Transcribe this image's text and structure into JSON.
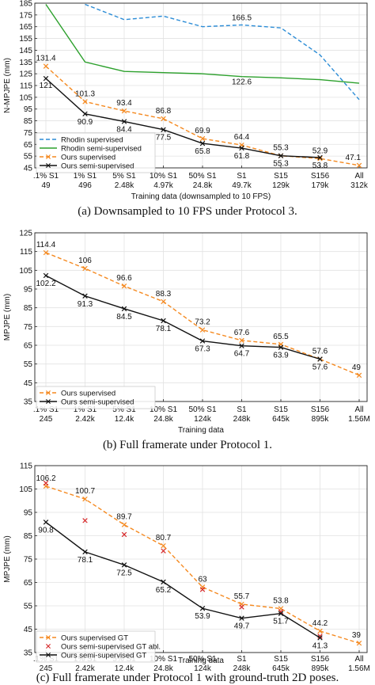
{
  "chart_data": [
    {
      "type": "line",
      "caption": "(a) Downsampled to 10 FPS under Protocol 3.",
      "ylabel": "N-MPJPE (mm)",
      "xlabel": "Training data (downsampled to 10 FPS)",
      "ylim": [
        45,
        185
      ],
      "yticks": [
        45,
        55,
        65,
        75,
        85,
        95,
        105,
        115,
        125,
        135,
        145,
        155,
        165,
        175,
        185
      ],
      "categories": [
        ".1% S1",
        "1% S1",
        "5% S1",
        "10% S1",
        "50% S1",
        "S1",
        "S15",
        "S156",
        "All"
      ],
      "categories_sub": [
        "49",
        "496",
        "2.48k",
        "4.97k",
        "24.8k",
        "49.7k",
        "129k",
        "179k",
        "312k"
      ],
      "grid": true,
      "legend": "bottom-left",
      "series": [
        {
          "name": "Rhodin supervised",
          "color": "#2b8cd6",
          "dash": "5,3",
          "marker": "none",
          "x": [
            1,
            2,
            3,
            4,
            5,
            6,
            7,
            8
          ],
          "values": [
            184,
            171,
            174,
            165,
            166.5,
            164,
            141,
            103
          ],
          "labels": [
            {
              "i": 4,
              "text": "166.5",
              "dy": -6
            }
          ]
        },
        {
          "name": "Rhodin semi-supervised",
          "color": "#2ca02c",
          "dash": "",
          "marker": "none",
          "x": [
            0,
            1,
            2,
            3,
            4,
            5,
            6,
            7,
            8
          ],
          "values": [
            184,
            135,
            127,
            126,
            125,
            122.6,
            121.5,
            120,
            117
          ],
          "labels": [
            {
              "i": 5,
              "text": "122.6",
              "dy": 10
            }
          ]
        },
        {
          "name": "Ours supervised",
          "color": "#f5891f",
          "dash": "5,3",
          "marker": "x",
          "x": [
            0,
            1,
            2,
            3,
            4,
            5,
            6,
            7,
            8
          ],
          "values": [
            131.4,
            101.3,
            93.4,
            86.8,
            69.9,
            64.4,
            55.3,
            52.9,
            47.1
          ],
          "labels": [
            {
              "i": 0,
              "text": "131.4",
              "dy": -7
            },
            {
              "i": 1,
              "text": "101.3",
              "dy": -7
            },
            {
              "i": 2,
              "text": "93.4",
              "dy": -7
            },
            {
              "i": 3,
              "text": "86.8",
              "dy": -7
            },
            {
              "i": 4,
              "text": "69.9",
              "dy": -7
            },
            {
              "i": 5,
              "text": "64.4",
              "dy": -7
            },
            {
              "i": 6,
              "text": "55.3",
              "dy": -7
            },
            {
              "i": 7,
              "text": "52.9",
              "dy": -7
            },
            {
              "i": 8,
              "text": "47.1",
              "dy": -7
            }
          ]
        },
        {
          "name": "Ours semi-supervised",
          "color": "#111111",
          "dash": "",
          "marker": "x",
          "x": [
            0,
            1,
            2,
            3,
            4,
            5,
            6,
            7
          ],
          "values": [
            121,
            90.9,
            84.4,
            77.5,
            65.8,
            61.8,
            55.3,
            53.8
          ],
          "labels": [
            {
              "i": 0,
              "text": "121",
              "dy": 12
            },
            {
              "i": 1,
              "text": "90.9",
              "dy": 13
            },
            {
              "i": 2,
              "text": "84.4",
              "dy": 13
            },
            {
              "i": 3,
              "text": "77.5",
              "dy": 13
            },
            {
              "i": 4,
              "text": "65.8",
              "dy": 13
            },
            {
              "i": 5,
              "text": "61.8",
              "dy": 13
            },
            {
              "i": 6,
              "text": "55.3",
              "dy": 13
            },
            {
              "i": 7,
              "text": "53.8",
              "dy": 13
            }
          ]
        }
      ]
    },
    {
      "type": "line",
      "caption": "(b) Full framerate under Protocol 1.",
      "ylabel": "MPJPE (mm)",
      "xlabel": "Training data",
      "ylim": [
        35,
        125
      ],
      "yticks": [
        35,
        45,
        55,
        65,
        75,
        85,
        95,
        105,
        115,
        125
      ],
      "categories": [
        ".1% S1",
        "1% S1",
        "5% S1",
        "10% S1",
        "50% S1",
        "S1",
        "S15",
        "S156",
        "All"
      ],
      "categories_sub": [
        "245",
        "2.42k",
        "12.4k",
        "24.8k",
        "124k",
        "248k",
        "645k",
        "895k",
        "1.56M"
      ],
      "grid": true,
      "legend": "bottom-left",
      "series": [
        {
          "name": "Ours supervised",
          "color": "#f5891f",
          "dash": "5,3",
          "marker": "x",
          "x": [
            0,
            1,
            2,
            3,
            4,
            5,
            6,
            7,
            8
          ],
          "values": [
            114.4,
            106,
            96.6,
            88.3,
            73.2,
            67.6,
            65.5,
            57.6,
            49
          ],
          "labels": [
            {
              "i": 0,
              "text": "114.4",
              "dy": -7
            },
            {
              "i": 1,
              "text": "106",
              "dy": -7
            },
            {
              "i": 2,
              "text": "96.6",
              "dy": -7
            },
            {
              "i": 3,
              "text": "88.3",
              "dy": -7
            },
            {
              "i": 4,
              "text": "73.2",
              "dy": -7
            },
            {
              "i": 5,
              "text": "67.6",
              "dy": -7
            },
            {
              "i": 6,
              "text": "65.5",
              "dy": -7
            },
            {
              "i": 7,
              "text": "57.6",
              "dy": -7
            },
            {
              "i": 8,
              "text": "49",
              "dy": -7
            }
          ]
        },
        {
          "name": "Ours semi-supervised",
          "color": "#111111",
          "dash": "",
          "marker": "x",
          "x": [
            0,
            1,
            2,
            3,
            4,
            5,
            6,
            7
          ],
          "values": [
            102.2,
            91.3,
            84.5,
            78.1,
            67.3,
            64.7,
            63.9,
            57.6
          ],
          "labels": [
            {
              "i": 0,
              "text": "102.2",
              "dy": 13
            },
            {
              "i": 1,
              "text": "91.3",
              "dy": 13
            },
            {
              "i": 2,
              "text": "84.5",
              "dy": 13
            },
            {
              "i": 3,
              "text": "78.1",
              "dy": 13
            },
            {
              "i": 4,
              "text": "67.3",
              "dy": 13
            },
            {
              "i": 5,
              "text": "64.7",
              "dy": 13
            },
            {
              "i": 6,
              "text": "63.9",
              "dy": 13
            },
            {
              "i": 7,
              "text": "57.6",
              "dy": 13
            }
          ]
        }
      ]
    },
    {
      "type": "line",
      "caption": "(c) Full framerate under Protocol 1 with ground-truth 2D poses.",
      "ylabel": "MPJPE (mm)",
      "xlabel": "Training data",
      "ylim": [
        35,
        115
      ],
      "yticks": [
        35,
        45,
        55,
        65,
        75,
        85,
        95,
        105,
        115
      ],
      "categories": [
        ".1% S1",
        "1% S1",
        "5% S1",
        "10% S1",
        "50% S1",
        "S1",
        "S15",
        "S156",
        "All"
      ],
      "categories_sub": [
        "245",
        "2.42k",
        "12.4k",
        "24.8k",
        "124k",
        "248k",
        "645k",
        "895k",
        "1.56M"
      ],
      "grid": true,
      "legend": "bottom-left",
      "series": [
        {
          "name": "Ours supervised GT",
          "color": "#f5891f",
          "dash": "5,3",
          "marker": "x",
          "x": [
            0,
            1,
            2,
            3,
            4,
            5,
            6,
            7,
            8
          ],
          "values": [
            106.2,
            100.7,
            89.7,
            80.7,
            63,
            55.7,
            53.8,
            44.2,
            39
          ],
          "labels": [
            {
              "i": 0,
              "text": "106.2",
              "dy": -7
            },
            {
              "i": 1,
              "text": "100.7",
              "dy": -7
            },
            {
              "i": 2,
              "text": "89.7",
              "dy": -7
            },
            {
              "i": 3,
              "text": "80.7",
              "dy": -7
            },
            {
              "i": 4,
              "text": "63",
              "dy": -7
            },
            {
              "i": 5,
              "text": "55.7",
              "dy": -7
            },
            {
              "i": 6,
              "text": "53.8",
              "dy": -7
            },
            {
              "i": 7,
              "text": "44.2",
              "dy": -7
            },
            {
              "i": 8,
              "text": "39",
              "dy": -7
            }
          ]
        },
        {
          "name": "Ours semi-supervised GT abl.",
          "color": "#d62728",
          "dash": "none",
          "marker": "x",
          "x": [
            0,
            1,
            2,
            3,
            4,
            5,
            6,
            7
          ],
          "values": [
            107.5,
            91.5,
            85.5,
            78.5,
            62,
            54.5,
            52.5,
            42
          ],
          "labels": []
        },
        {
          "name": "Ours semi-supervised GT",
          "color": "#111111",
          "dash": "",
          "marker": "x",
          "x": [
            0,
            1,
            2,
            3,
            4,
            5,
            6,
            7
          ],
          "values": [
            90.8,
            78.1,
            72.5,
            65.2,
            53.9,
            49.7,
            51.7,
            41.3
          ],
          "labels": [
            {
              "i": 0,
              "text": "90.8",
              "dy": 13
            },
            {
              "i": 1,
              "text": "78.1",
              "dy": 13
            },
            {
              "i": 2,
              "text": "72.5",
              "dy": 13
            },
            {
              "i": 3,
              "text": "65.2",
              "dy": 13
            },
            {
              "i": 4,
              "text": "53.9",
              "dy": 13
            },
            {
              "i": 5,
              "text": "49.7",
              "dy": 13
            },
            {
              "i": 6,
              "text": "51.7",
              "dy": 13
            },
            {
              "i": 7,
              "text": "41.3",
              "dy": 13
            }
          ]
        }
      ]
    }
  ]
}
